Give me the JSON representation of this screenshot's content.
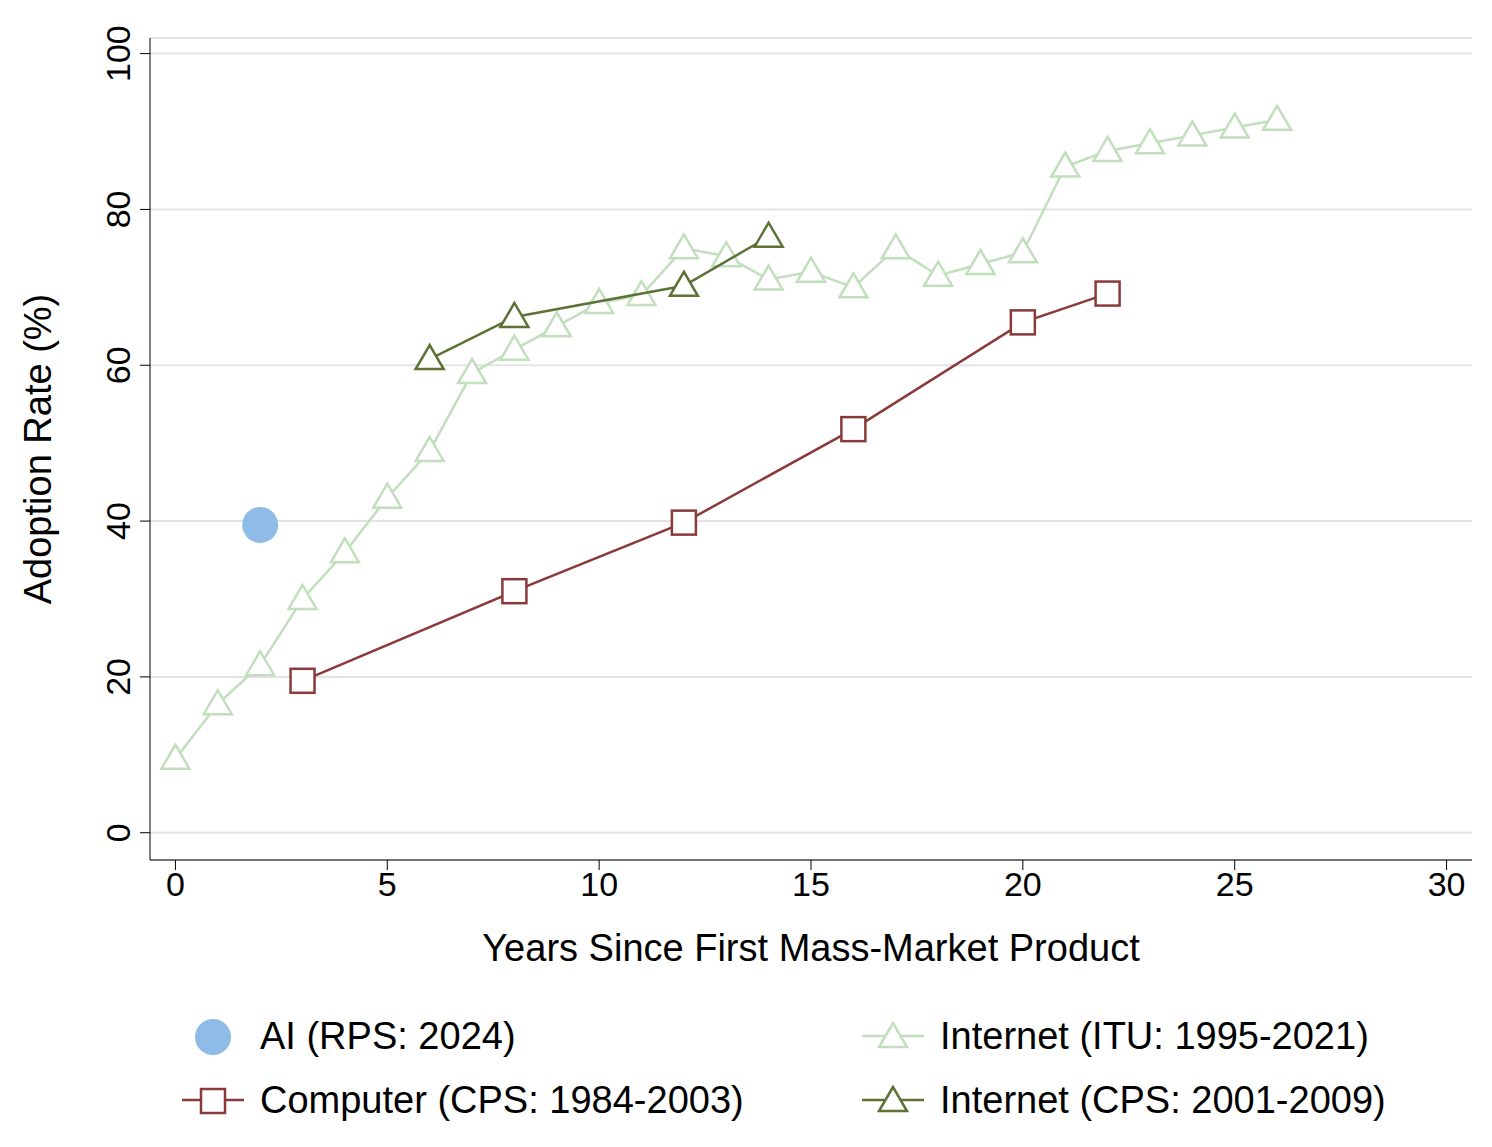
{
  "chart_data": {
    "type": "line",
    "x_label": "Years Since First Mass-Market Product",
    "y_label": "Adoption Rate  (%)",
    "xlim": [
      -0.6,
      30.6
    ],
    "xticks": [
      0,
      5,
      10,
      15,
      20,
      25,
      30
    ],
    "ylim": [
      -3.5,
      102
    ],
    "yticks": [
      0,
      20,
      40,
      60,
      80,
      100
    ],
    "grid": true,
    "legend": "bottom",
    "series": [
      {
        "name": "AI (RPS: 2024)",
        "type": "scatter",
        "color": "#8fbce6",
        "marker": "circle",
        "line_style": "none",
        "x": [
          2
        ],
        "values": [
          39.5
        ]
      },
      {
        "name": "Internet (ITU: 1995-2021)",
        "type": "line",
        "color": "#c2dfbd",
        "marker": "triangle",
        "line_style": "solid",
        "x": [
          0,
          1,
          2,
          3,
          4,
          5,
          6,
          7,
          8,
          9,
          10,
          11,
          12,
          13,
          14,
          15,
          16,
          17,
          18,
          19,
          20,
          21,
          22,
          23,
          24,
          25,
          26
        ],
        "values": [
          9.5,
          16.5,
          21.5,
          30,
          36,
          43,
          49,
          59,
          62,
          65,
          68,
          69,
          75,
          74,
          71,
          72,
          70,
          75,
          71.5,
          73,
          74.5,
          85.5,
          87.5,
          88.5,
          89.5,
          90.5,
          91.5
        ]
      },
      {
        "name": "Computer (CPS: 1984-2003)",
        "type": "line",
        "color": "#8b3a3a",
        "marker": "square",
        "line_style": "solid",
        "x": [
          3,
          8,
          12,
          16,
          20,
          22
        ],
        "values": [
          19.5,
          31,
          39.8,
          51.8,
          65.5,
          69.2
        ]
      },
      {
        "name": "Internet (CPS: 2001-2009)",
        "type": "line",
        "color": "#5c7236",
        "marker": "triangle",
        "line_style": "solid",
        "x": [
          6,
          8,
          12,
          14
        ],
        "values": [
          60.8,
          66.2,
          70.2,
          76.5
        ]
      }
    ]
  }
}
